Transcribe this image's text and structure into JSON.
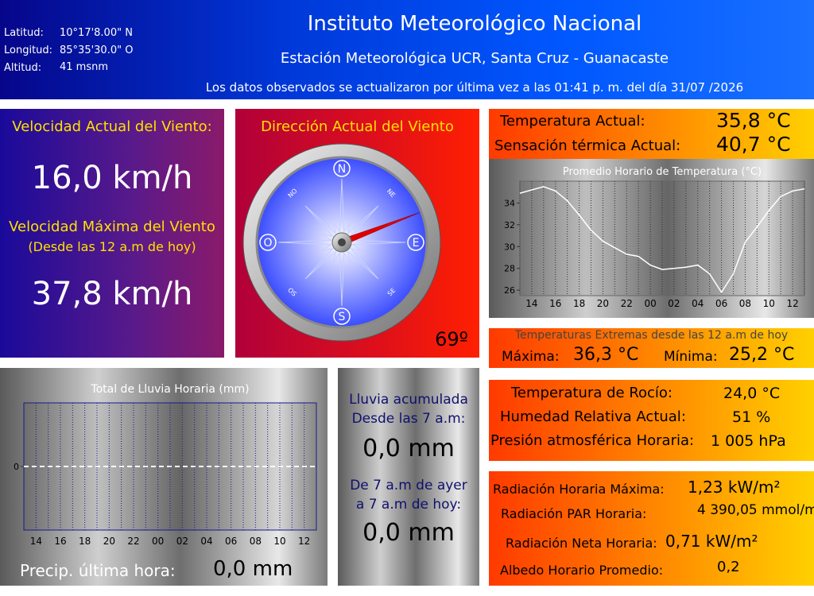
{
  "header": {
    "lat_label": "Latitud:",
    "lat": "10°17'8.00\" N",
    "lon_label": "Longitud:",
    "lon": "85°35'30.0\" O",
    "alt_label": "Altitud:",
    "alt": "41 msnm",
    "title": "Instituto Meteorológico Nacional",
    "subtitle": "Estación Meteorológica UCR, Santa Cruz - Guanacaste",
    "update": "Los datos observados se actualizaron por última vez a las 01:41 p. m. del día  31/07 /2026"
  },
  "wind": {
    "speed_label": "Velocidad Actual del Viento:",
    "speed": "16,0 km/h",
    "max_label": "Velocidad Máxima del Viento",
    "max_note": "(Desde las 12 a.m de hoy)",
    "max": "37,8 km/h",
    "direction_label": "Dirección Actual del Viento",
    "direction": "69º",
    "compass": [
      "N",
      "NE",
      "E",
      "SE",
      "S",
      "OS",
      "O",
      "NO"
    ]
  },
  "temperature": {
    "current_label": "Temperatura Actual:",
    "current": "35,8 °C",
    "feels_label": "Sensación térmica Actual:",
    "feels": "40,7 °C"
  },
  "extremes": {
    "title": "Temperaturas Extremas desde las 12 a.m de hoy",
    "max_label": "Máxima:",
    "max": "36,3 °C",
    "min_label": "Mínima:",
    "min": "25,2 °C"
  },
  "humidity": {
    "rows": [
      [
        "Temperatura de Rocío:",
        "24,0 °C"
      ],
      [
        "Humedad Relativa Actual:",
        "51 %"
      ],
      [
        "Presión atmosférica Horaria:",
        "1 005 hPa"
      ]
    ]
  },
  "radiation": {
    "rows": [
      [
        "Radiación Horaria Máxima:",
        "1,23 kW/m²"
      ],
      [
        "Radiación PAR Horaria:",
        "4 390,05 mmol/m²"
      ],
      [
        "Radiación Neta Horaria:",
        "0,71 kW/m²"
      ],
      [
        "Albedo Horario Promedio:",
        "0,2"
      ]
    ]
  },
  "rain": {
    "last_label": "Precip. última hora:",
    "last": "0,0 mm",
    "acc1_label": [
      "Lluvia acumulada",
      "Desde las 7 a.m:"
    ],
    "acc1": "0,0 mm",
    "acc2_label": [
      "De 7 a.m de ayer",
      "a 7 a.m de hoy:"
    ],
    "acc2": "0,0 mm"
  },
  "chart_data": [
    {
      "type": "line",
      "title": "Promedio Horario de Temperatura (°C)",
      "categories": [
        null,
        "14",
        null,
        "16",
        null,
        "18",
        null,
        "20",
        null,
        "22",
        null,
        "00",
        null,
        "02",
        null,
        "04",
        null,
        "06",
        null,
        "08",
        null,
        "10",
        null,
        "12",
        null
      ],
      "values": [
        34.9,
        35.2,
        35.5,
        35.1,
        34.2,
        32.9,
        31.5,
        30.5,
        29.9,
        29.3,
        29.1,
        28.3,
        27.9,
        28.0,
        28.1,
        28.3,
        27.5,
        25.8,
        27.5,
        30.4,
        31.8,
        33.3,
        34.6,
        35.1,
        35.3
      ],
      "color": "#ffffff",
      "ylim": [
        25.5,
        36
      ],
      "yticks": [
        26,
        28,
        30,
        32,
        34
      ],
      "grid": true
    },
    {
      "type": "line",
      "title": "Total de Lluvia Horaria (mm)",
      "categories": [
        null,
        "14",
        null,
        "16",
        null,
        "18",
        null,
        "20",
        null,
        "22",
        null,
        "00",
        null,
        "02",
        null,
        "04",
        null,
        "06",
        null,
        "08",
        null,
        "10",
        null,
        "12",
        null
      ],
      "values": [
        0,
        0,
        0,
        0,
        0,
        0,
        0,
        0,
        0,
        0,
        0,
        0,
        0,
        0,
        0,
        0,
        0,
        0,
        0,
        0,
        0,
        0,
        0,
        0,
        0
      ],
      "color": "#ffffff",
      "ylim": [
        -1,
        1
      ],
      "yticks": [
        0
      ],
      "grid": true
    }
  ]
}
